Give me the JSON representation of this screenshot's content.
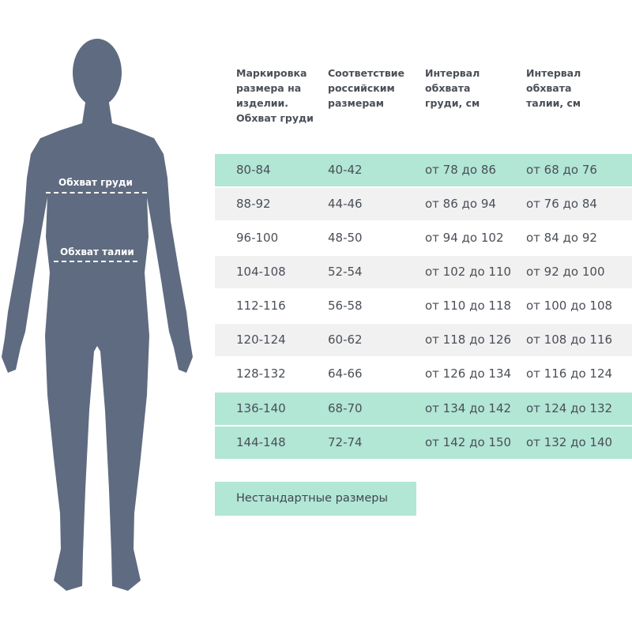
{
  "figure": {
    "chest_label": "Обхват груди",
    "waist_label": "Обхват талии",
    "body_color": "#5f6b80"
  },
  "table": {
    "headers": [
      "Маркировка размера на изделии. Обхват груди",
      "Соответствие российским размерам",
      "Интервал обхвата груди, см",
      "Интервал обхвата талии, см"
    ],
    "rows": [
      {
        "cells": [
          "80-84",
          "40-42",
          "от 78 до 86",
          "от 68 до 76"
        ],
        "highlight": "teal"
      },
      {
        "cells": [
          "88-92",
          "44-46",
          "от 86 до 94",
          "от 76 до 84"
        ],
        "highlight": "grey"
      },
      {
        "cells": [
          "96-100",
          "48-50",
          "от 94 до 102",
          "от 84 до 92"
        ],
        "highlight": "none"
      },
      {
        "cells": [
          "104-108",
          "52-54",
          "от 102 до 110",
          "от 92 до 100"
        ],
        "highlight": "grey"
      },
      {
        "cells": [
          "112-116",
          "56-58",
          "от 110 до 118",
          "от 100 до 108"
        ],
        "highlight": "none"
      },
      {
        "cells": [
          "120-124",
          "60-62",
          "от 118 до 126",
          "от 108 до 116"
        ],
        "highlight": "grey"
      },
      {
        "cells": [
          "128-132",
          "64-66",
          "от 126 до 134",
          "от 116 до 124"
        ],
        "highlight": "none"
      },
      {
        "cells": [
          "136-140",
          "68-70",
          "от 134 до 142",
          "от 124 до 132"
        ],
        "highlight": "teal"
      },
      {
        "cells": [
          "144-148",
          "72-74",
          "от 142 до 150",
          "от 132 до 140"
        ],
        "highlight": "teal"
      }
    ],
    "colors": {
      "teal": "#b2e6d5",
      "grey": "#f1f1f1",
      "none": "#ffffff"
    }
  },
  "nonstandard_label": "Нестандартные размеры"
}
